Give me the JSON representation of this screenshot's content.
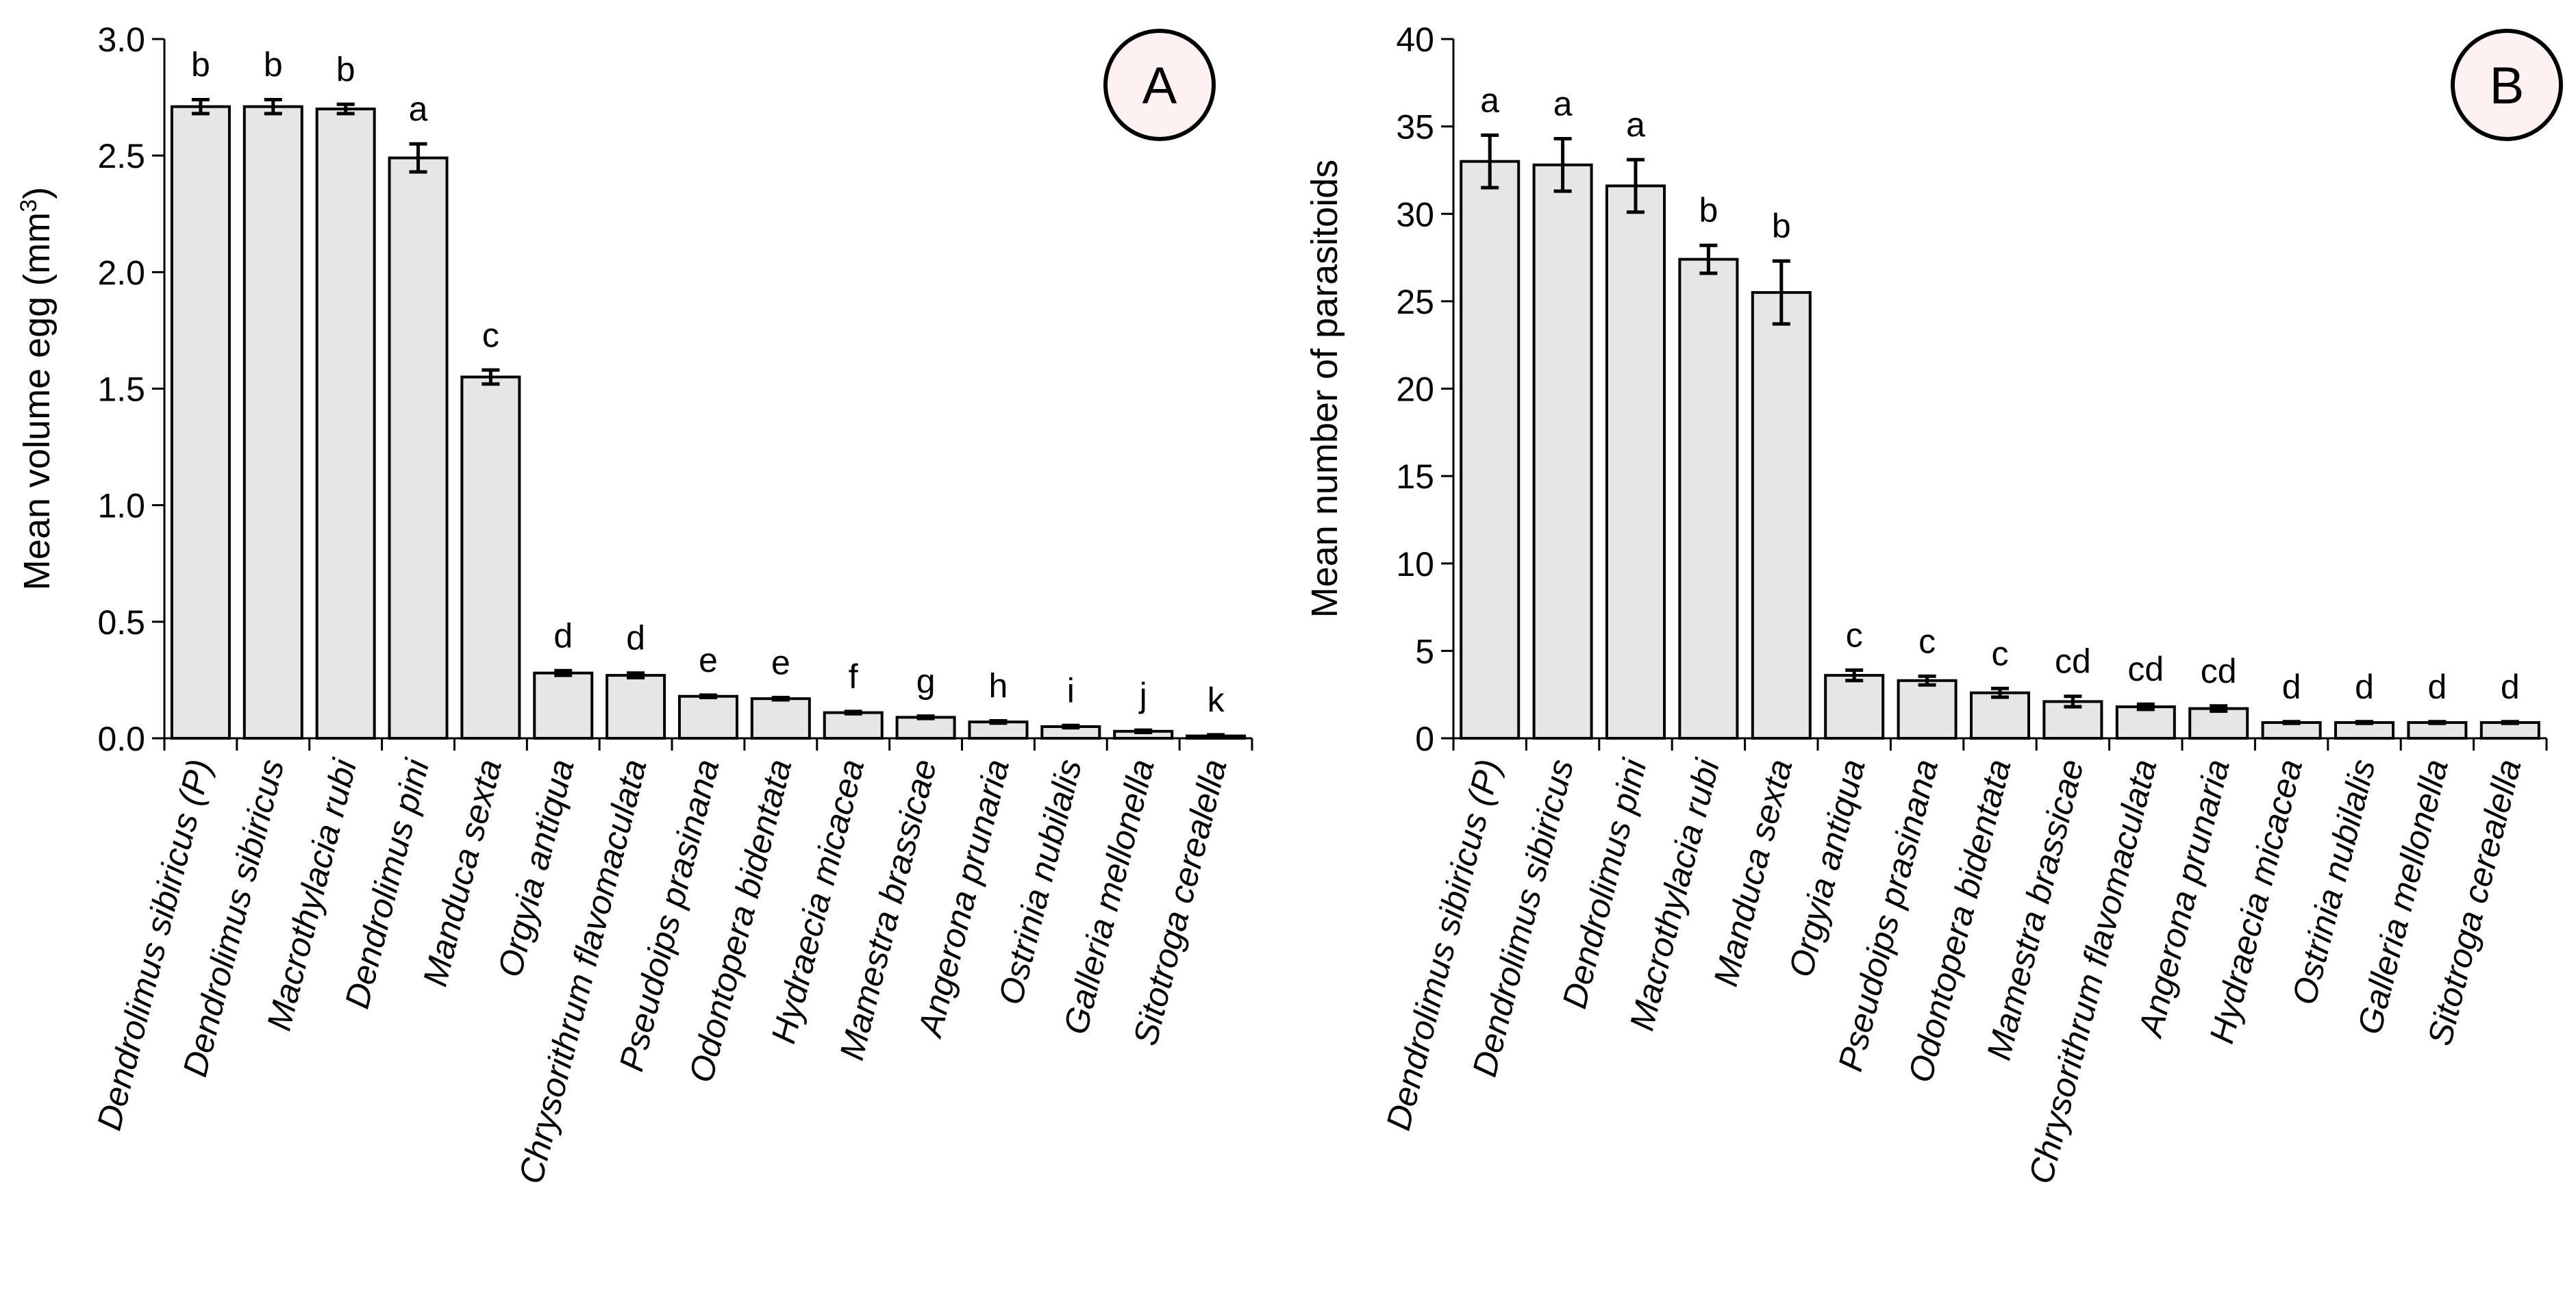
{
  "chart_data": [
    {
      "panel": "A",
      "type": "bar",
      "ylabel": "Mean volume egg  (mm",
      "ylabel_sup": "3",
      "ylabel_end": ")",
      "ylim": [
        0,
        3.0
      ],
      "yticks": [
        "0.0",
        "0.5",
        "1.0",
        "1.5",
        "2.0",
        "2.5",
        "3.0"
      ],
      "bar_color": "#e6e6e6",
      "categories": [
        "Dendrolimus sibiricus (P)",
        "Dendrolimus sibiricus",
        "Macrothylacia rubi",
        "Dendrolimus pini",
        "Manduca sexta",
        "Orgyia antiqua",
        "Chrysorithrum flavomaculata",
        "Pseudoips prasinana",
        "Odontopera bidentata",
        "Hydraecia micacea",
        "Mamestra brassicae",
        "Angerona prunaria",
        "Ostrinia nubilalis",
        "Galleria mellonella",
        "Sitotroga cerealella"
      ],
      "values": [
        2.71,
        2.71,
        2.7,
        2.49,
        1.55,
        0.28,
        0.27,
        0.18,
        0.17,
        0.11,
        0.09,
        0.07,
        0.05,
        0.03,
        0.01
      ],
      "errors": [
        0.03,
        0.03,
        0.02,
        0.06,
        0.03,
        0.01,
        0.01,
        0.005,
        0.005,
        0.005,
        0.005,
        0.005,
        0.005,
        0.005,
        0.005
      ],
      "letters": [
        "b",
        "b",
        "b",
        "a",
        "c",
        "d",
        "d",
        "e",
        "e",
        "f",
        "g",
        "h",
        "i",
        "j",
        "k"
      ]
    },
    {
      "panel": "B",
      "type": "bar",
      "ylabel": "Mean number of parasitoids",
      "ylim": [
        0,
        40
      ],
      "yticks": [
        "0",
        "5",
        "10",
        "15",
        "20",
        "25",
        "30",
        "35",
        "40"
      ],
      "bar_color": "#e6e6e6",
      "categories": [
        "Dendrolimus sibiricus (P)",
        "Dendrolimus sibiricus",
        "Dendrolimus pini",
        "Macrothylacia rubi",
        "Manduca sexta",
        "Orgyia antiqua",
        "Pseudoips prasinana",
        "Odontopera bidentata",
        "Mamestra brassicae",
        "Chrysorithrum flavomaculata",
        "Angerona prunaria",
        "Hydraecia micacea",
        "Ostrinia nubilalis",
        "Galleria mellonella",
        "Sitotroga cerealella"
      ],
      "values": [
        33.0,
        32.8,
        31.6,
        27.4,
        25.5,
        3.6,
        3.3,
        2.6,
        2.1,
        1.8,
        1.7,
        0.9,
        0.9,
        0.9,
        0.9
      ],
      "errors": [
        1.5,
        1.5,
        1.5,
        0.8,
        1.8,
        0.3,
        0.25,
        0.25,
        0.3,
        0.15,
        0.15,
        0.05,
        0.05,
        0.05,
        0.05
      ],
      "letters": [
        "a",
        "a",
        "a",
        "b",
        "b",
        "c",
        "c",
        "c",
        "cd",
        "cd",
        "cd",
        "d",
        "d",
        "d",
        "d"
      ]
    }
  ]
}
